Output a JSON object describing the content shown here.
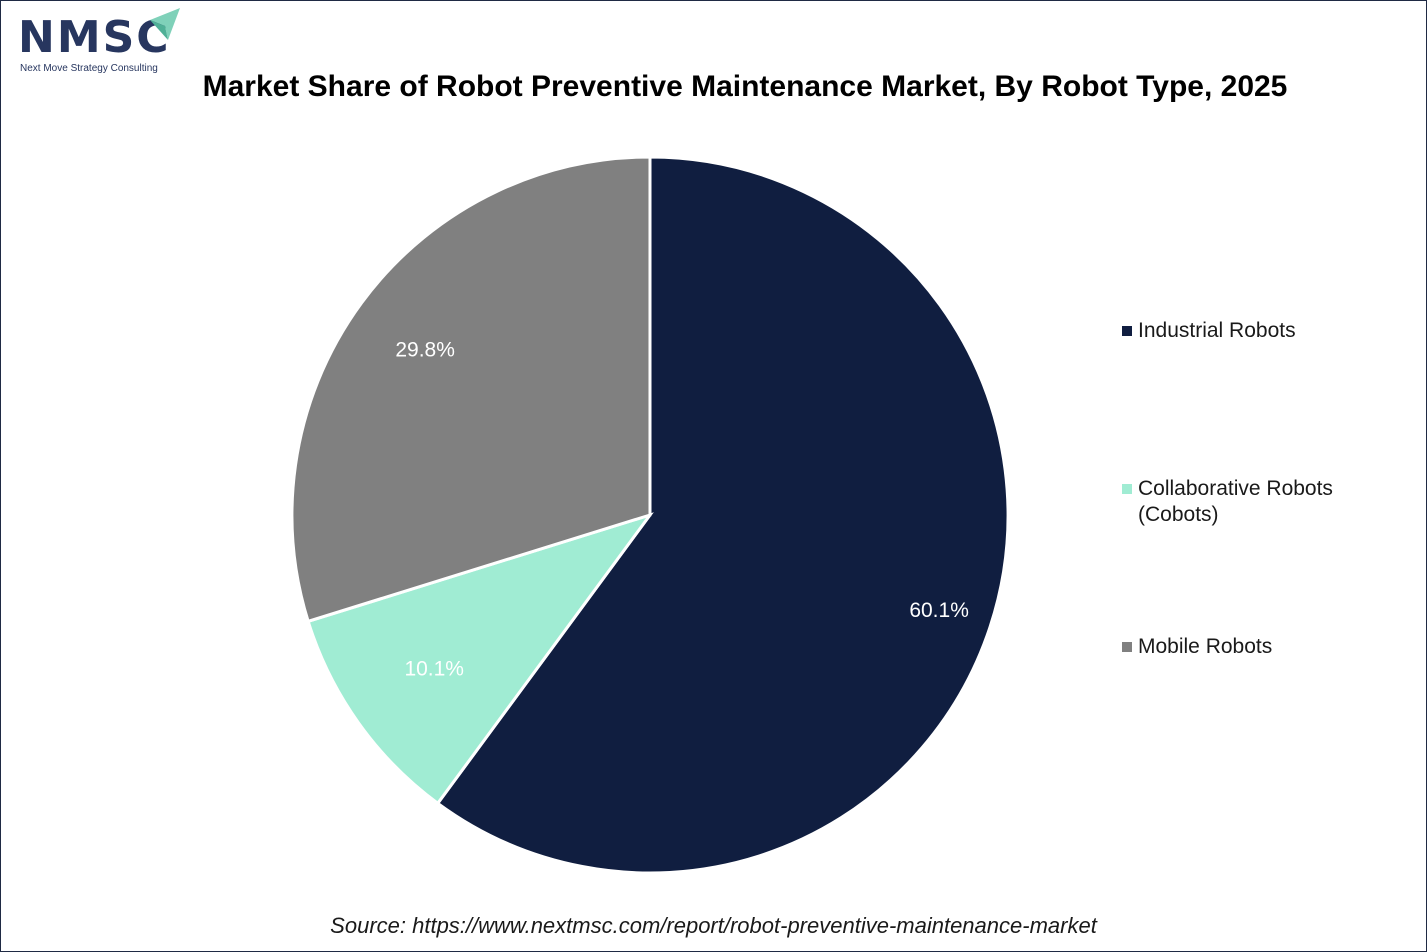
{
  "logo": {
    "text": "NMSC",
    "subtitle": "Next Move Strategy Consulting",
    "colors": {
      "text": "#27365f",
      "arrow": "#7fd1b9"
    }
  },
  "chart_data": {
    "type": "pie",
    "title": "Market Share of Robot Preventive Maintenance Market, By Robot Type, 2025",
    "categories": [
      "Industrial Robots",
      "Collaborative Robots (Cobots)",
      "Mobile Robots"
    ],
    "values": [
      60.1,
      10.1,
      29.8
    ],
    "labels": [
      "60.1%",
      "10.1%",
      "29.8%"
    ],
    "colors": [
      "#101e40",
      "#a0ecd3",
      "#808080"
    ],
    "start_angle": "12 o'clock",
    "direction": "clockwise",
    "legend_position": "right"
  },
  "source": "Source: https://www.nextmsc.com/report/robot-preventive-maintenance-market"
}
